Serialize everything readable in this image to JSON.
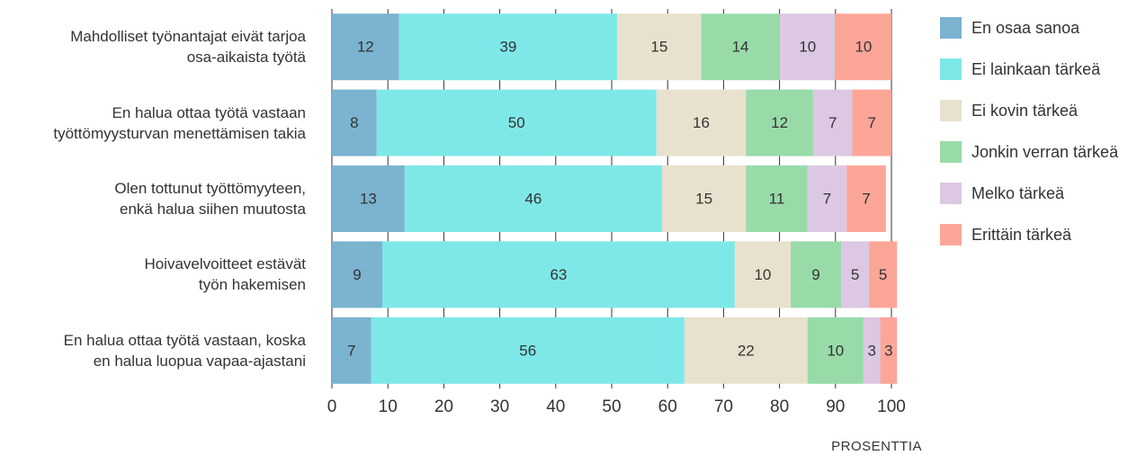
{
  "chart_data": {
    "type": "stacked-bar-horizontal",
    "categories": [
      "Mahdolliset työnantajat eivät tarjoa\nosa-aikaista työtä",
      "En halua ottaa työtä vastaan\ntyöttömyysturvan menettämisen takia",
      "Olen tottunut työttömyyteen,\nenkä halua siihen muutosta",
      "Hoivavelvoitteet estävät\ntyön hakemisen",
      "En halua ottaa työtä vastaan, koska\nen halua luopua vapaa-ajastani"
    ],
    "series": [
      {
        "name": "En osaa sanoa",
        "color": "#7bb3d0",
        "values": [
          12,
          8,
          13,
          9,
          7
        ]
      },
      {
        "name": "Ei lainkaan tärkeä",
        "color": "#7ee8e8",
        "values": [
          39,
          50,
          46,
          63,
          56
        ]
      },
      {
        "name": "Ei kovin tärkeä",
        "color": "#e8e1cd",
        "values": [
          15,
          16,
          15,
          10,
          22
        ]
      },
      {
        "name": "Jonkin verran tärkeä",
        "color": "#98dba9",
        "values": [
          14,
          12,
          11,
          9,
          10
        ]
      },
      {
        "name": "Melko tärkeä",
        "color": "#dcc8e2",
        "values": [
          10,
          7,
          7,
          5,
          3
        ]
      },
      {
        "name": "Erittäin tärkeä",
        "color": "#fca698",
        "values": [
          10,
          7,
          7,
          5,
          3
        ]
      }
    ],
    "xlim": [
      0,
      100
    ],
    "xticks": [
      0,
      10,
      20,
      30,
      40,
      50,
      60,
      70,
      80,
      90,
      100
    ],
    "xlabel": "PROSENTTIA",
    "grid": true,
    "legend": "right"
  }
}
